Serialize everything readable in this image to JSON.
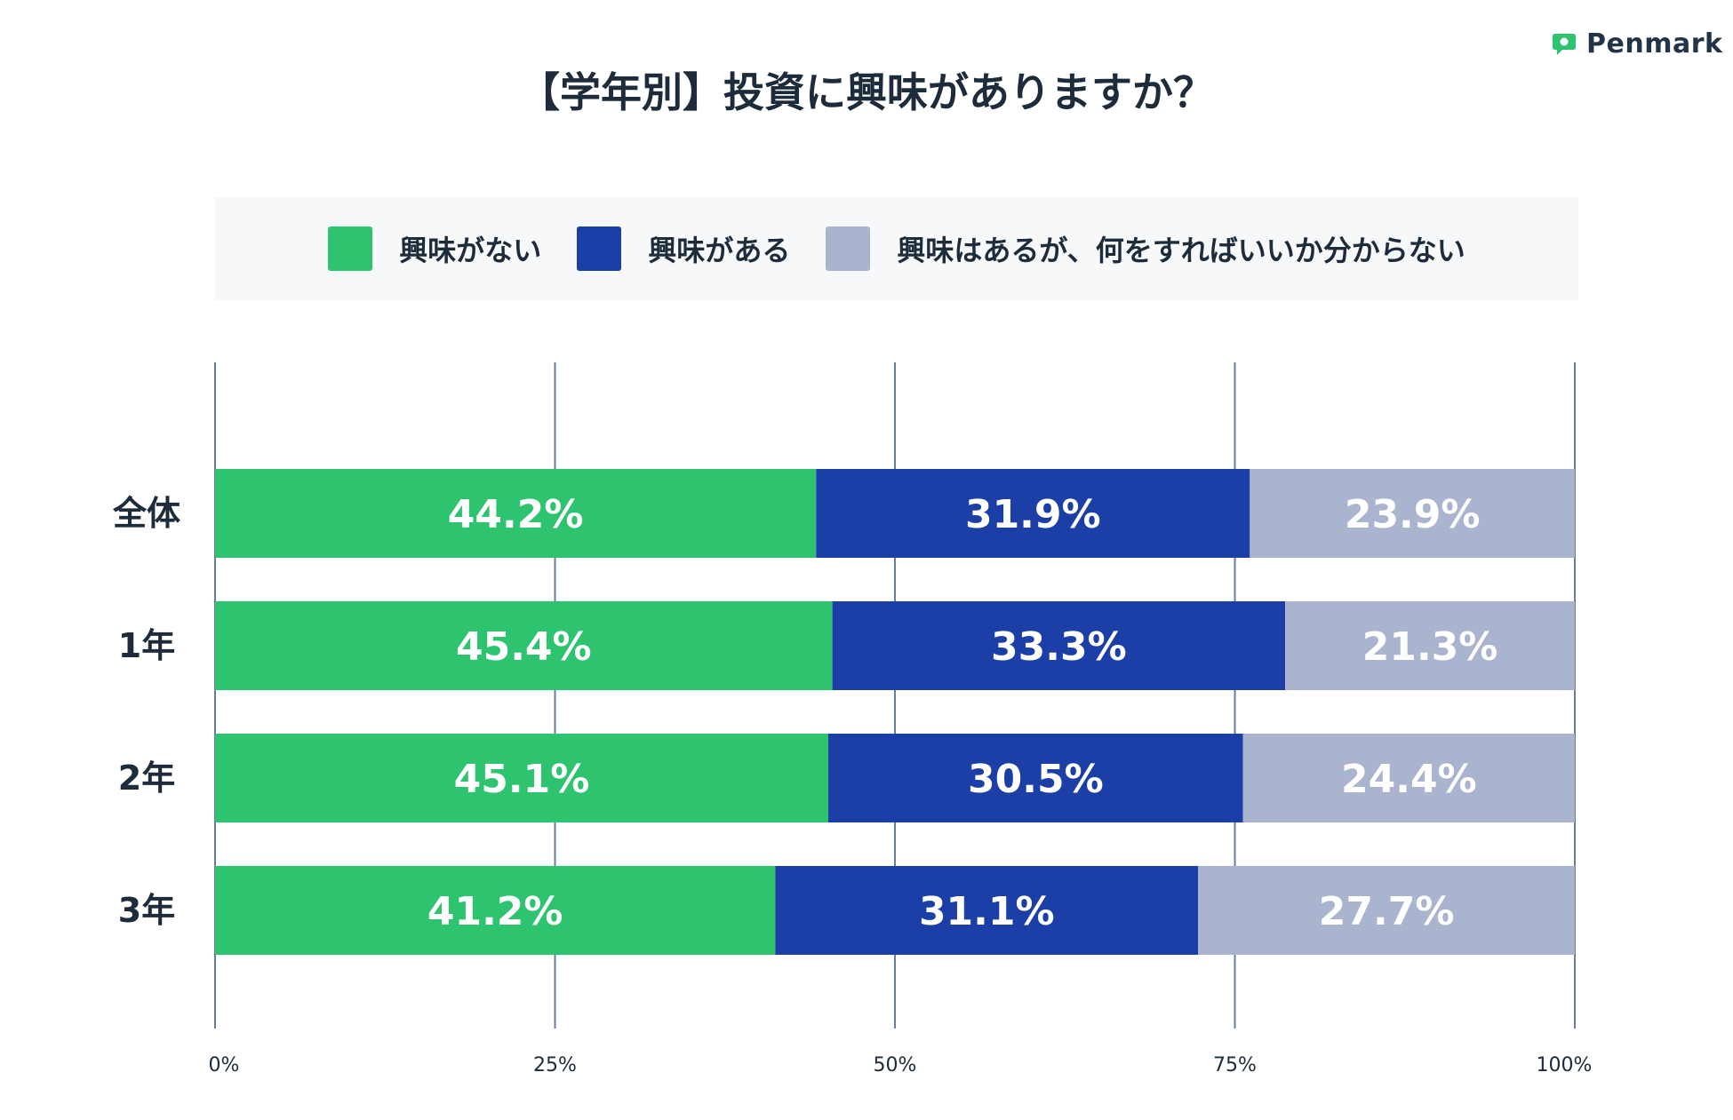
{
  "brand": {
    "name": "Penmark",
    "color": "#2ec46f"
  },
  "chart_data": {
    "type": "bar",
    "orientation": "horizontal",
    "stacked": true,
    "title": "【学年別】投資に興味がありますか？",
    "categories": [
      "全体",
      "1年",
      "2年",
      "3年"
    ],
    "series": [
      {
        "name": "興味がない",
        "color": "#2ec46f",
        "values": [
          44.2,
          45.4,
          45.1,
          41.2
        ],
        "labels": [
          "44.2%",
          "45.4%",
          "45.1%",
          "41.2%"
        ]
      },
      {
        "name": "興味がある",
        "color": "#1b3fa6",
        "values": [
          31.9,
          33.3,
          30.5,
          31.1
        ],
        "labels": [
          "31.9%",
          "33.3%",
          "30.5%",
          "31.1%"
        ]
      },
      {
        "name": "興味はあるが、何をすればいいか分からない",
        "color": "#abb4cf",
        "values": [
          23.9,
          21.3,
          24.4,
          27.7
        ],
        "labels": [
          "23.9%",
          "21.3%",
          "24.4%",
          "27.7%"
        ]
      }
    ],
    "xlim": [
      0,
      100
    ],
    "xticks": [
      0,
      25,
      50,
      75,
      100
    ],
    "xtick_labels": [
      "0%",
      "25%",
      "50%",
      "75%",
      "100%"
    ],
    "grid": true,
    "legend_position": "top"
  }
}
